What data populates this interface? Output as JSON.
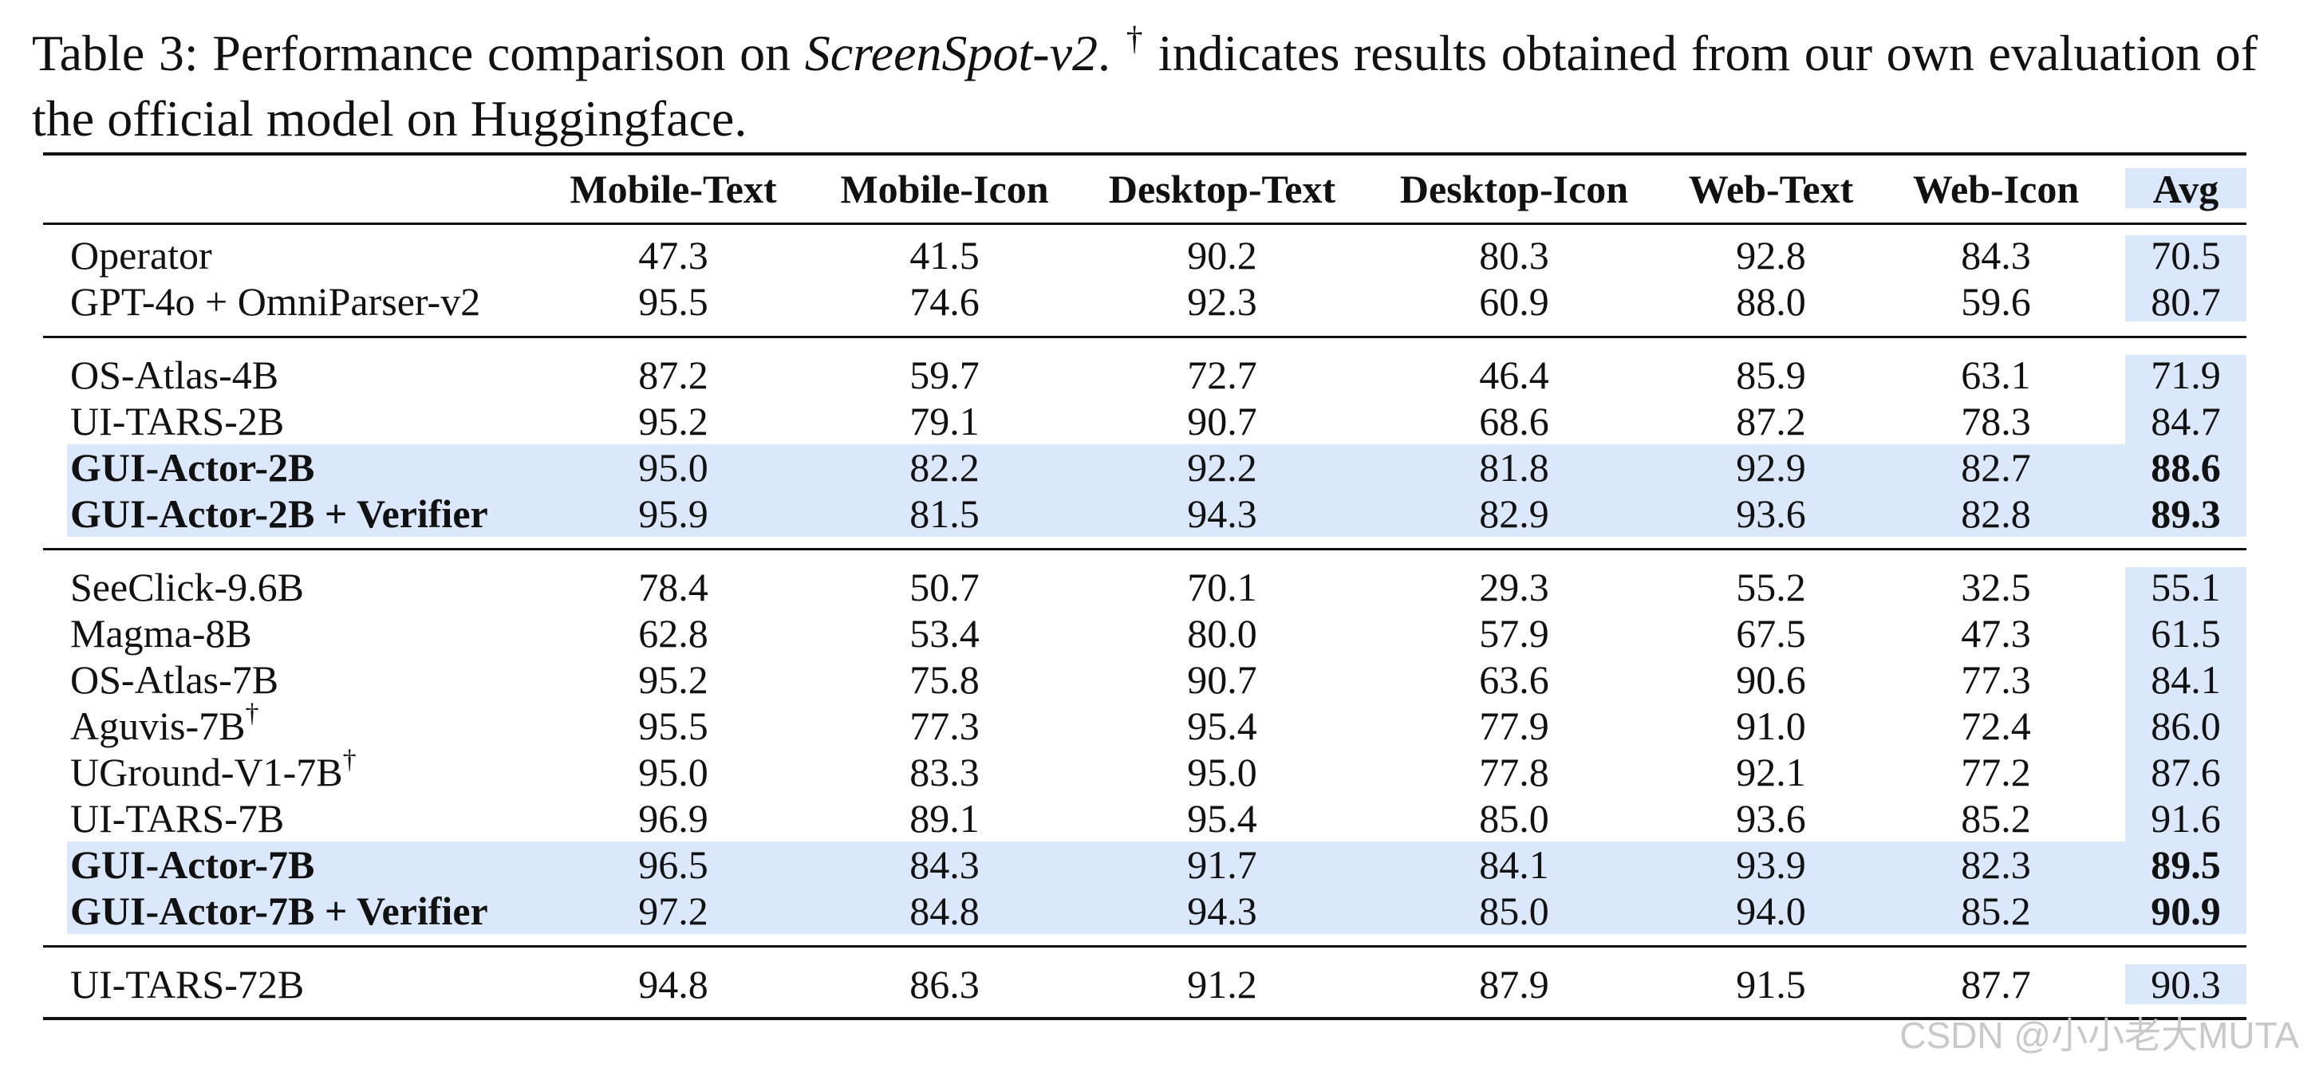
{
  "caption": {
    "table_label": "Table 3:",
    "prefix": "Performance comparison on",
    "benchmark": "ScreenSpot-v2",
    "period": ".",
    "dagger": "†",
    "suffix": "indicates results obtained from our own evaluation of the official model on Huggingface."
  },
  "table": {
    "columns": [
      "Mobile-Text",
      "Mobile-Icon",
      "Desktop-Text",
      "Desktop-Icon",
      "Web-Text",
      "Web-Icon",
      "Avg"
    ],
    "groups": [
      {
        "rows": [
          {
            "name": "Operator",
            "dagger": false,
            "bold": false,
            "highlight": false,
            "values": [
              "47.3",
              "41.5",
              "90.2",
              "80.3",
              "92.8",
              "84.3",
              "70.5"
            ]
          },
          {
            "name": "GPT-4o + OmniParser-v2",
            "dagger": false,
            "bold": false,
            "highlight": false,
            "values": [
              "95.5",
              "74.6",
              "92.3",
              "60.9",
              "88.0",
              "59.6",
              "80.7"
            ]
          }
        ]
      },
      {
        "rows": [
          {
            "name": "OS-Atlas-4B",
            "dagger": false,
            "bold": false,
            "highlight": false,
            "values": [
              "87.2",
              "59.7",
              "72.7",
              "46.4",
              "85.9",
              "63.1",
              "71.9"
            ]
          },
          {
            "name": "UI-TARS-2B",
            "dagger": false,
            "bold": false,
            "highlight": false,
            "values": [
              "95.2",
              "79.1",
              "90.7",
              "68.6",
              "87.2",
              "78.3",
              "84.7"
            ]
          },
          {
            "name": "GUI-Actor-2B",
            "dagger": false,
            "bold": true,
            "highlight": true,
            "values": [
              "95.0",
              "82.2",
              "92.2",
              "81.8",
              "92.9",
              "82.7",
              "88.6"
            ]
          },
          {
            "name": "GUI-Actor-2B + Verifier",
            "dagger": false,
            "bold": true,
            "highlight": true,
            "values": [
              "95.9",
              "81.5",
              "94.3",
              "82.9",
              "93.6",
              "82.8",
              "89.3"
            ]
          }
        ]
      },
      {
        "rows": [
          {
            "name": "SeeClick-9.6B",
            "dagger": false,
            "bold": false,
            "highlight": false,
            "values": [
              "78.4",
              "50.7",
              "70.1",
              "29.3",
              "55.2",
              "32.5",
              "55.1"
            ]
          },
          {
            "name": "Magma-8B",
            "dagger": false,
            "bold": false,
            "highlight": false,
            "values": [
              "62.8",
              "53.4",
              "80.0",
              "57.9",
              "67.5",
              "47.3",
              "61.5"
            ]
          },
          {
            "name": "OS-Atlas-7B",
            "dagger": false,
            "bold": false,
            "highlight": false,
            "values": [
              "95.2",
              "75.8",
              "90.7",
              "63.6",
              "90.6",
              "77.3",
              "84.1"
            ]
          },
          {
            "name": "Aguvis-7B",
            "dagger": true,
            "bold": false,
            "highlight": false,
            "values": [
              "95.5",
              "77.3",
              "95.4",
              "77.9",
              "91.0",
              "72.4",
              "86.0"
            ]
          },
          {
            "name": "UGround-V1-7B",
            "dagger": true,
            "bold": false,
            "highlight": false,
            "values": [
              "95.0",
              "83.3",
              "95.0",
              "77.8",
              "92.1",
              "77.2",
              "87.6"
            ]
          },
          {
            "name": "UI-TARS-7B",
            "dagger": false,
            "bold": false,
            "highlight": false,
            "values": [
              "96.9",
              "89.1",
              "95.4",
              "85.0",
              "93.6",
              "85.2",
              "91.6"
            ]
          },
          {
            "name": "GUI-Actor-7B",
            "dagger": false,
            "bold": true,
            "highlight": true,
            "values": [
              "96.5",
              "84.3",
              "91.7",
              "84.1",
              "93.9",
              "82.3",
              "89.5"
            ]
          },
          {
            "name": "GUI-Actor-7B + Verifier",
            "dagger": false,
            "bold": true,
            "highlight": true,
            "values": [
              "97.2",
              "84.8",
              "94.3",
              "85.0",
              "94.0",
              "85.2",
              "90.9"
            ]
          }
        ]
      },
      {
        "rows": [
          {
            "name": "UI-TARS-72B",
            "dagger": false,
            "bold": false,
            "highlight": false,
            "values": [
              "94.8",
              "86.3",
              "91.2",
              "87.9",
              "91.5",
              "87.7",
              "90.3"
            ]
          }
        ]
      }
    ]
  },
  "colors": {
    "highlight": "#dbe8fb",
    "text": "#111111",
    "watermark": "#c9c9c9"
  },
  "watermark": "CSDN @小小老大MUTA"
}
